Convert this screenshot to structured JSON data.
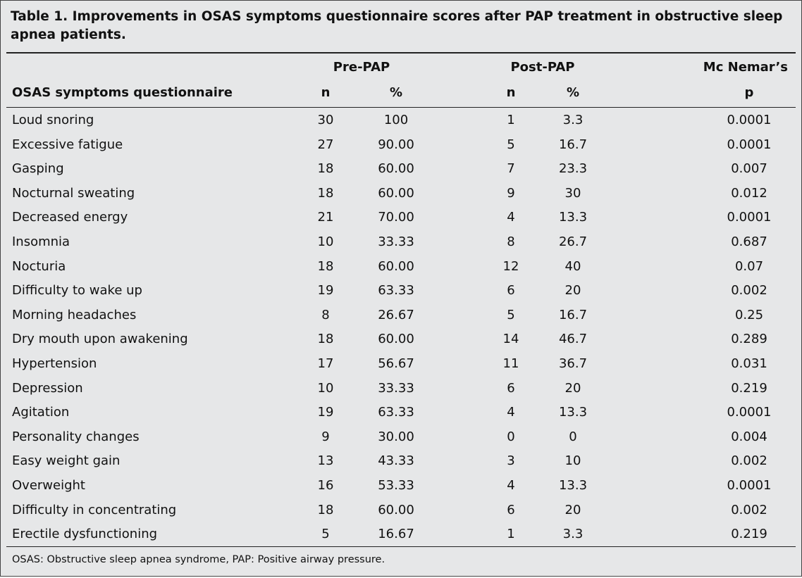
{
  "header": {
    "title": "Table 1. Improvements in OSAS symptoms questionnaire scores after PAP treatment in obstructive sleep apnea patients."
  },
  "table": {
    "group_headers": [
      "Pre-PAP",
      "Post-PAP",
      "Mc Nemar’s"
    ],
    "column_headers": [
      "OSAS symptoms questionnaire",
      "n",
      "%",
      "n",
      "%",
      "p"
    ],
    "rows": [
      [
        "Loud snoring",
        "30",
        "100",
        "1",
        "3.3",
        "0.0001"
      ],
      [
        "Excessive fatigue",
        "27",
        "90.00",
        "5",
        "16.7",
        "0.0001"
      ],
      [
        "Gasping",
        "18",
        "60.00",
        "7",
        "23.3",
        "0.007"
      ],
      [
        "Nocturnal sweating",
        "18",
        "60.00",
        "9",
        "30",
        "0.012"
      ],
      [
        "Decreased energy",
        "21",
        "70.00",
        "4",
        "13.3",
        "0.0001"
      ],
      [
        "Insomnia",
        "10",
        "33.33",
        "8",
        "26.7",
        "0.687"
      ],
      [
        "Nocturia",
        "18",
        "60.00",
        "12",
        "40",
        "0.07"
      ],
      [
        "Difficulty to wake up",
        "19",
        "63.33",
        "6",
        "20",
        "0.002"
      ],
      [
        "Morning headaches",
        "8",
        "26.67",
        "5",
        "16.7",
        "0.25"
      ],
      [
        "Dry mouth upon awakening",
        "18",
        "60.00",
        "14",
        "46.7",
        "0.289"
      ],
      [
        "Hypertension",
        "17",
        "56.67",
        "11",
        "36.7",
        "0.031"
      ],
      [
        "Depression",
        "10",
        "33.33",
        "6",
        "20",
        "0.219"
      ],
      [
        "Agitation",
        "19",
        "63.33",
        "4",
        "13.3",
        "0.0001"
      ],
      [
        "Personality changes",
        "9",
        "30.00",
        "0",
        "0",
        "0.004"
      ],
      [
        "Easy weight gain",
        "13",
        "43.33",
        "3",
        "10",
        "0.002"
      ],
      [
        "Overweight",
        "16",
        "53.33",
        "4",
        "13.3",
        "0.0001"
      ],
      [
        "Difficulty in concentrating",
        "18",
        "60.00",
        "6",
        "20",
        "0.002"
      ],
      [
        "Erectile dysfunctioning",
        "5",
        "16.67",
        "1",
        "3.3",
        "0.219"
      ]
    ]
  },
  "footnote": "OSAS: Obstructive sleep apnea syndrome, PAP: Positive airway pressure."
}
